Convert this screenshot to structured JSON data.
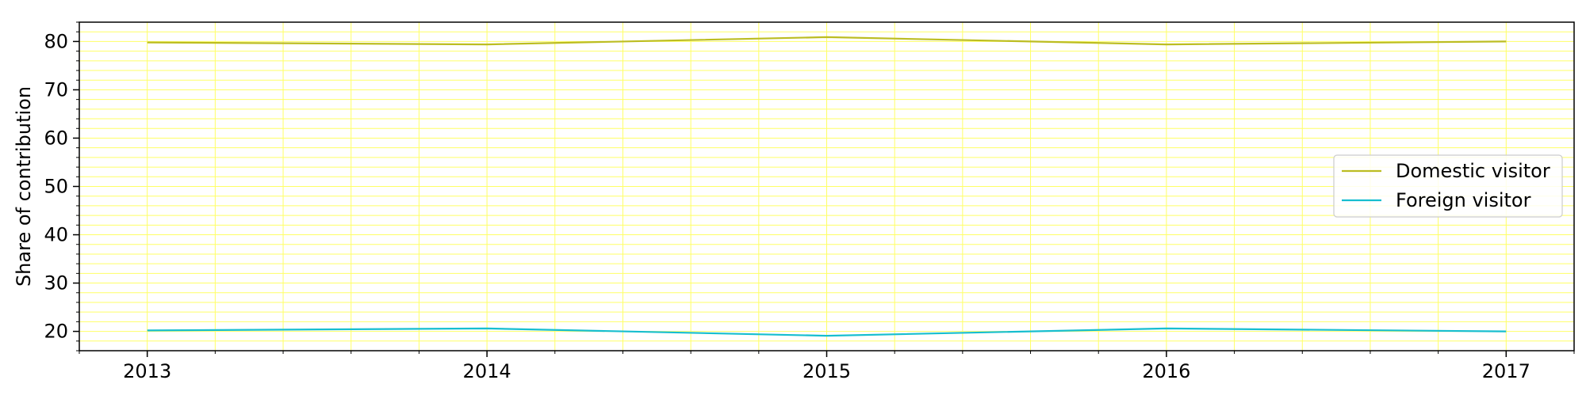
{
  "chart_data": {
    "type": "line",
    "title": "",
    "xlabel": "",
    "ylabel": "Share of contribution",
    "x": [
      2013,
      2014,
      2015,
      2016,
      2017
    ],
    "x_tick_labels": [
      "2013",
      "2014",
      "2015",
      "2016",
      "2017"
    ],
    "xlim": [
      2012.8,
      2017.2
    ],
    "ylim": [
      16,
      84
    ],
    "y_ticks": [
      20,
      30,
      40,
      50,
      60,
      70,
      80
    ],
    "y_tick_labels": [
      "20",
      "30",
      "40",
      "50",
      "60",
      "70",
      "80"
    ],
    "grid": true,
    "minor_grid": true,
    "grid_color": "#ffff66",
    "legend_position": "center-right",
    "series": [
      {
        "name": "Domestic visitor",
        "color": "#bcbd22",
        "values": [
          79.8,
          79.4,
          80.9,
          79.4,
          80.0
        ]
      },
      {
        "name": "Foreign visitor",
        "color": "#17becf",
        "values": [
          20.2,
          20.6,
          19.1,
          20.6,
          20.0
        ]
      }
    ]
  }
}
